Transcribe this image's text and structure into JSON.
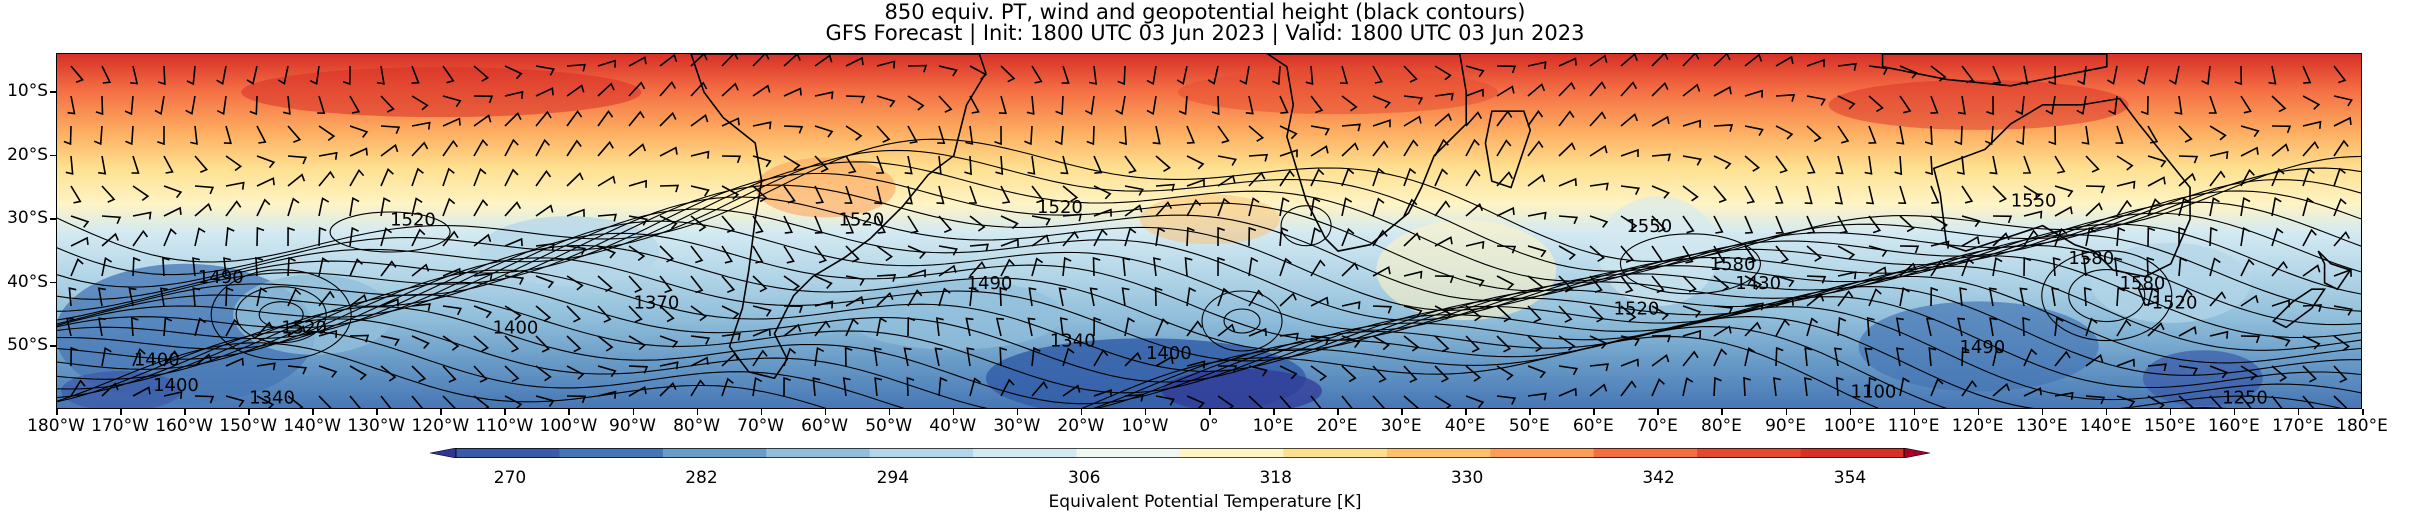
{
  "title_line1": "850 equiv. PT, wind and geopotential height (black contours)",
  "title_line2": "GFS Forecast | Init: 1800 UTC 03 Jun 2023 | Valid: 1800 UTC 03 Jun 2023",
  "lat_labels": [
    "10°S",
    "20°S",
    "30°S",
    "40°S",
    "50°S"
  ],
  "lon_labels": [
    "180°W",
    "170°W",
    "160°W",
    "150°W",
    "140°W",
    "130°W",
    "120°W",
    "110°W",
    "100°W",
    "90°W",
    "80°W",
    "70°W",
    "60°W",
    "50°W",
    "40°W",
    "30°W",
    "20°W",
    "10°W",
    "0°",
    "10°E",
    "20°E",
    "30°E",
    "40°E",
    "50°E",
    "60°E",
    "70°E",
    "80°E",
    "90°E",
    "100°E",
    "110°E",
    "120°E",
    "130°E",
    "140°E",
    "150°E",
    "160°E",
    "170°E",
    "180°E"
  ],
  "colorbar": {
    "label": "Equivalent Potential Temperature [K]",
    "ticks": [
      "270",
      "282",
      "294",
      "306",
      "318",
      "330",
      "342",
      "354"
    ],
    "colors": [
      "#313695",
      "#3a5aa8",
      "#4575b4",
      "#6a9cc8",
      "#91bfdb",
      "#b3d6e8",
      "#d4eaf2",
      "#eef7f0",
      "#fff4c4",
      "#fee090",
      "#fdc06c",
      "#fc9d59",
      "#f46d43",
      "#e3492f",
      "#d73027",
      "#a50026"
    ]
  },
  "contour_labels": [
    "1520",
    "1490",
    "1400",
    "1520",
    "1400",
    "1340",
    "1520",
    "1520",
    "1370",
    "1490",
    "1340",
    "1550",
    "1520",
    "1580",
    "1430",
    "1400",
    "1490",
    "1580",
    "1550",
    "1580",
    "1520",
    "1250",
    "1100",
    "1400"
  ],
  "colors": {
    "land_outline": "#000000",
    "contour": "#000000",
    "barb": "#000000"
  }
}
